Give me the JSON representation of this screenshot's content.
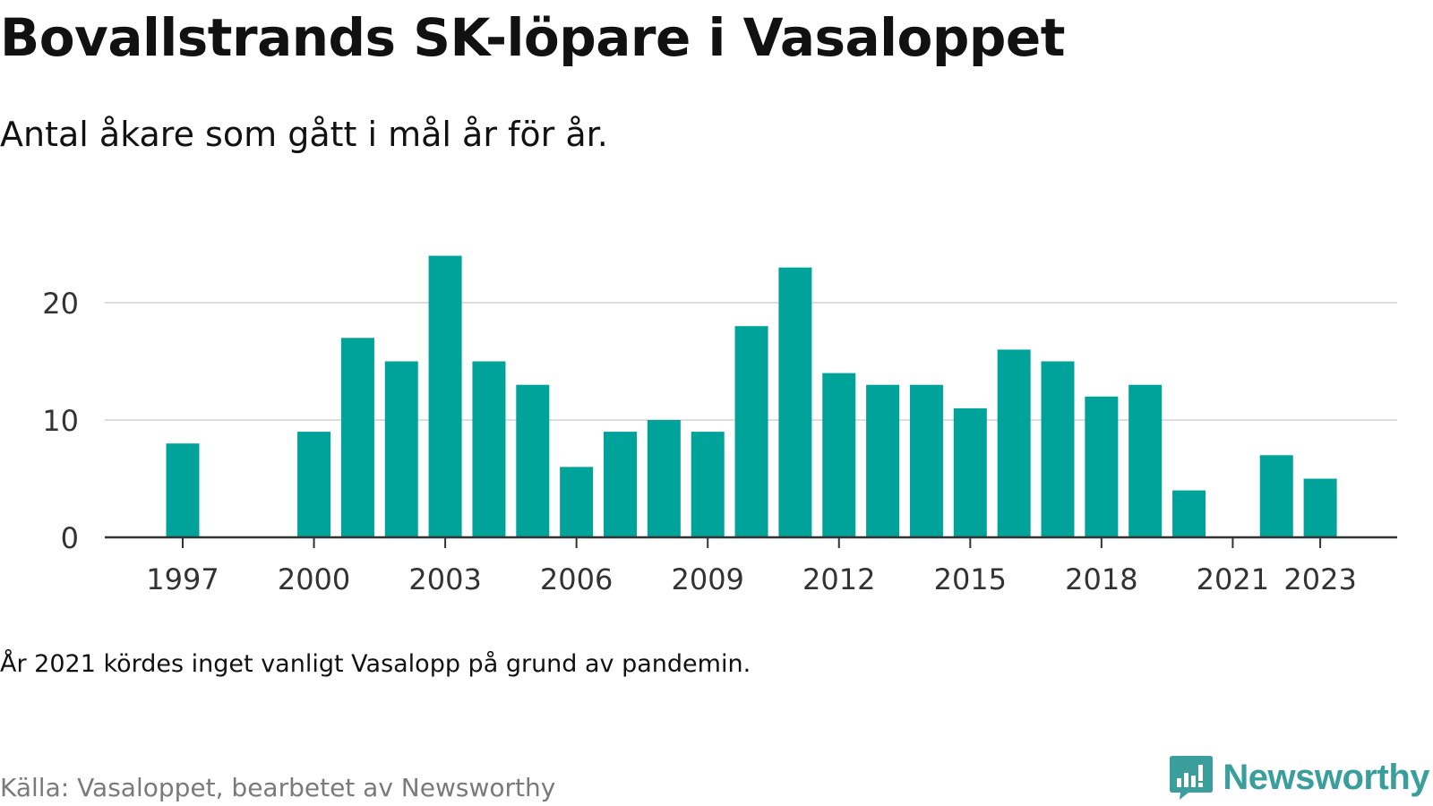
{
  "header": {
    "title": "Bovallstrands SK-löpare i Vasaloppet",
    "subtitle": "Antal åkare som gått i mål år för år."
  },
  "footer": {
    "note": "År 2021 kördes inget vanligt Vasalopp på grund av pandemin.",
    "source": "Källa: Vasaloppet, bearbetet av Newsworthy",
    "brand": "Newsworthy",
    "brand_icon": "bar-chart-speech-bubble-icon"
  },
  "colors": {
    "bar": "#00a39a",
    "grid": "#dddddd",
    "axis": "#333333",
    "brand": "#3a9e9c"
  },
  "chart_data": {
    "type": "bar",
    "title": "Bovallstrands SK-löpare i Vasaloppet",
    "subtitle": "Antal åkare som gått i mål år för år.",
    "x": [
      1997,
      1998,
      1999,
      2000,
      2001,
      2002,
      2003,
      2004,
      2005,
      2006,
      2007,
      2008,
      2009,
      2010,
      2011,
      2012,
      2013,
      2014,
      2015,
      2016,
      2017,
      2018,
      2019,
      2020,
      2021,
      2022,
      2023
    ],
    "values": [
      8,
      0,
      0,
      9,
      17,
      15,
      24,
      15,
      13,
      6,
      9,
      10,
      9,
      18,
      23,
      14,
      13,
      13,
      11,
      16,
      15,
      12,
      13,
      4,
      0,
      7,
      5
    ],
    "x_ticks": [
      1997,
      2000,
      2003,
      2006,
      2009,
      2012,
      2015,
      2018,
      2021,
      2023
    ],
    "y_ticks": [
      0,
      10,
      20
    ],
    "ylim": [
      0,
      25
    ],
    "xlabel": "",
    "ylabel": "",
    "grid": true,
    "legend": "none"
  }
}
